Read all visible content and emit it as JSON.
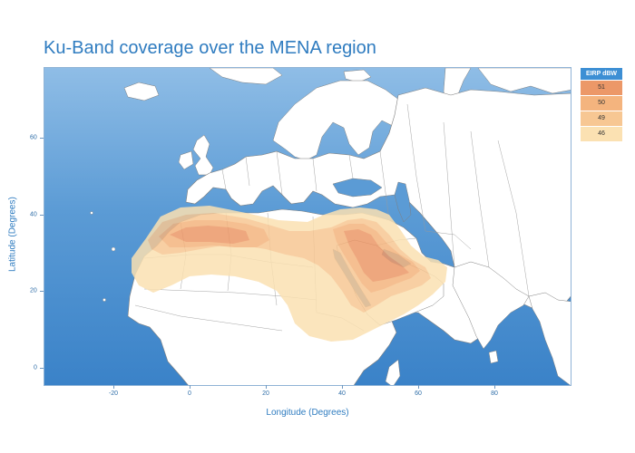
{
  "title": "Ku-Band coverage over the MENA region",
  "map": {
    "xlabel": "Longitude (Degrees)",
    "ylabel": "Latitude (Degrees)",
    "x_ticks": [
      "-20",
      "0",
      "20",
      "40",
      "60",
      "80"
    ],
    "y_ticks": [
      "60",
      "40",
      "20",
      "0"
    ],
    "ocean_color": "#5b9bd5",
    "land_color": "#ffffff"
  },
  "legend": {
    "title": "EIRP dBW",
    "items": [
      {
        "label": "51",
        "color": "#ec9868"
      },
      {
        "label": "50",
        "color": "#f4b47e"
      },
      {
        "label": "49",
        "color": "#f7c793"
      },
      {
        "label": "46",
        "color": "#fbe1b2"
      }
    ]
  }
}
